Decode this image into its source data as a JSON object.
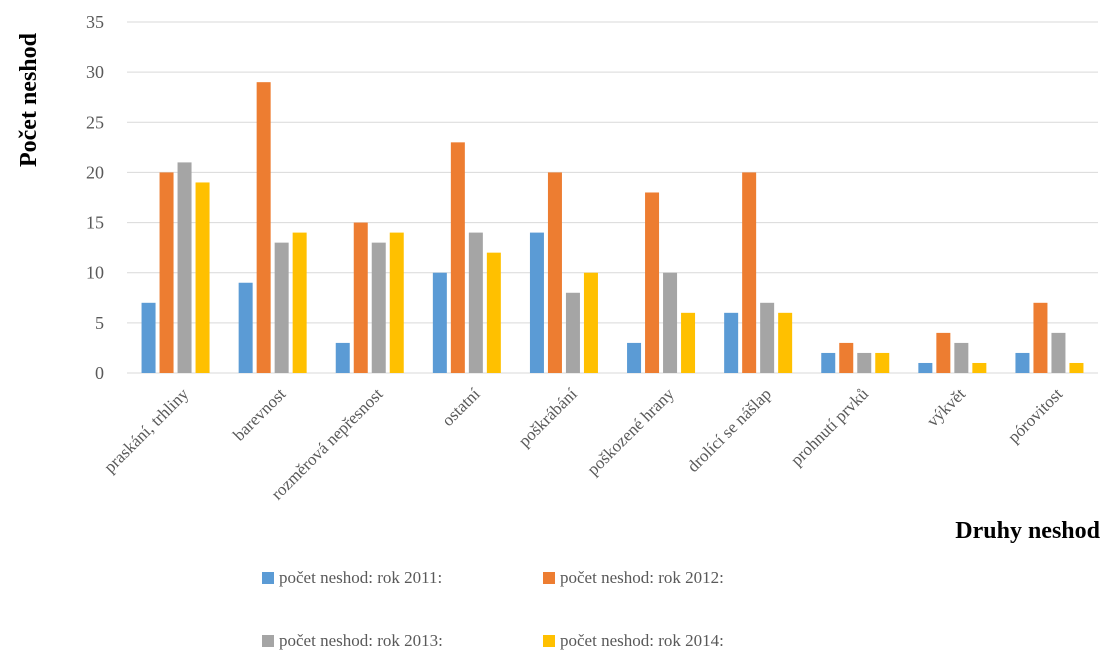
{
  "chart_data": {
    "type": "bar",
    "title": "",
    "xlabel": "Druhy neshod",
    "ylabel": "Počet neshod",
    "ylim": [
      0,
      35
    ],
    "yticks": [
      0,
      5,
      10,
      15,
      20,
      25,
      30,
      35
    ],
    "grid": true,
    "legend_position": "bottom",
    "categories": [
      "praskání, trhliny",
      "barevnost",
      "rozměrová nepřesnost",
      "ostatní",
      "poškrábání",
      "poškozené hrany",
      "drolící se nášlap",
      "prohnutí prvků",
      "výkvět",
      "pórovitost"
    ],
    "series": [
      {
        "name": "počet neshod: rok 2011:",
        "color": "#5b9bd5",
        "values": [
          7,
          9,
          3,
          10,
          14,
          3,
          6,
          2,
          1,
          2
        ]
      },
      {
        "name": "počet neshod: rok 2012:",
        "color": "#ed7d31",
        "values": [
          20,
          29,
          15,
          23,
          20,
          18,
          20,
          3,
          4,
          7
        ]
      },
      {
        "name": "počet neshod: rok 2013:",
        "color": "#a5a5a5",
        "values": [
          21,
          13,
          13,
          14,
          8,
          10,
          7,
          2,
          3,
          4
        ]
      },
      {
        "name": "počet neshod: rok 2014:",
        "color": "#ffc000",
        "values": [
          19,
          14,
          14,
          12,
          10,
          6,
          6,
          2,
          1,
          1
        ]
      }
    ]
  }
}
